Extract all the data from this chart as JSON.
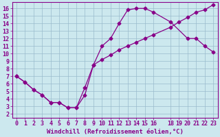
{
  "xlabel": "Windchill (Refroidissement éolien,°C)",
  "bg_color": "#cce8ee",
  "line_color": "#880088",
  "grid_color": "#99bbcc",
  "xlim": [
    -0.5,
    23.5
  ],
  "ylim": [
    1.5,
    16.8
  ],
  "xticks": [
    0,
    1,
    2,
    3,
    4,
    5,
    6,
    7,
    8,
    9,
    10,
    11,
    12,
    13,
    14,
    15,
    16,
    18,
    19,
    20,
    21,
    22,
    23
  ],
  "yticks": [
    2,
    3,
    4,
    5,
    6,
    7,
    8,
    9,
    10,
    11,
    12,
    13,
    14,
    15,
    16
  ],
  "line1_x": [
    0,
    1,
    2,
    3,
    4,
    5,
    6,
    7,
    8,
    9,
    10,
    11,
    12,
    13,
    14,
    15,
    16,
    18,
    20,
    21,
    22,
    23
  ],
  "line1_y": [
    7,
    6.2,
    5.2,
    4.5,
    3.5,
    3.5,
    2.8,
    2.8,
    4.5,
    8.5,
    11,
    12,
    14,
    15.8,
    16,
    16,
    15.5,
    14.2,
    12,
    12,
    11,
    10.2
  ],
  "line2_x": [
    0,
    1,
    2,
    3,
    4,
    5,
    6,
    7,
    8,
    9,
    10,
    11,
    12,
    13,
    14,
    15,
    16,
    18,
    19,
    20,
    21,
    22,
    23
  ],
  "line2_y": [
    7,
    6.2,
    5.2,
    4.5,
    3.5,
    3.5,
    2.8,
    2.8,
    5.5,
    8.5,
    9.2,
    9.8,
    10.5,
    11.0,
    11.5,
    12.0,
    12.5,
    13.5,
    14.2,
    14.8,
    15.5,
    15.8,
    16.5
  ],
  "font_size_tick": 6,
  "font_size_xlabel": 6.5,
  "marker": "D",
  "marker_size": 2.5,
  "linewidth": 0.9
}
